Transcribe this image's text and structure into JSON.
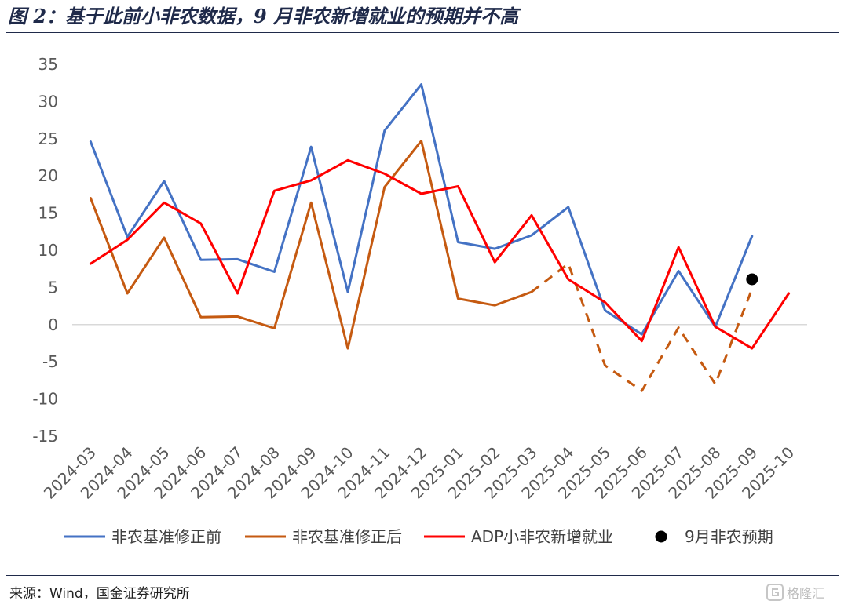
{
  "figure": {
    "title": "图 2：基于此前小非农数据，9 月非农新增就业的预期并不高",
    "source": "来源：Wind，国金证券研究所",
    "watermark": "格隆汇"
  },
  "colors": {
    "blue": "#4472C4",
    "orange": "#C55A11",
    "red": "#FF0000",
    "black": "#000000"
  },
  "chart_data": {
    "type": "line",
    "categories": [
      "2024-03",
      "2024-04",
      "2024-05",
      "2024-06",
      "2024-07",
      "2024-08",
      "2024-09",
      "2024-10",
      "2024-11",
      "2024-12",
      "2025-01",
      "2025-02",
      "2025-03",
      "2025-04",
      "2025-05",
      "2025-06",
      "2025-07",
      "2025-08",
      "2025-09",
      "2025-10"
    ],
    "ylim": [
      -15,
      35
    ],
    "yticks": [
      35,
      30,
      25,
      20,
      15,
      10,
      5,
      0,
      -5,
      -10,
      -15
    ],
    "grid": false,
    "legend_position": "bottom",
    "series": [
      {
        "name": "非农基准修正前",
        "color": "#4472C4",
        "style": "solid",
        "values": [
          24.6,
          11.8,
          19.3,
          8.7,
          8.8,
          7.1,
          23.9,
          4.4,
          26.1,
          32.3,
          11.1,
          10.2,
          12.0,
          15.8,
          1.9,
          -1.3,
          7.2,
          -0.3,
          11.9,
          null
        ]
      },
      {
        "name": "非农基准修正后",
        "color": "#C55A11",
        "style": "solid",
        "values": [
          17.0,
          4.2,
          11.7,
          1.0,
          1.1,
          -0.5,
          16.4,
          -3.2,
          18.5,
          24.7,
          3.5,
          2.6,
          4.4,
          null,
          null,
          null,
          null,
          null,
          null,
          null
        ]
      },
      {
        "name": "",
        "color": "#C55A11",
        "style": "dashed",
        "values": [
          null,
          null,
          null,
          null,
          null,
          null,
          null,
          null,
          null,
          null,
          null,
          null,
          4.4,
          8.2,
          -5.5,
          -8.9,
          -0.4,
          -8.0,
          4.8,
          null
        ]
      },
      {
        "name": "ADP小非农新增就业",
        "color": "#FF0000",
        "style": "solid",
        "values": [
          8.2,
          11.4,
          16.4,
          13.6,
          4.2,
          18.0,
          19.4,
          22.1,
          20.3,
          17.6,
          18.6,
          8.4,
          14.7,
          6.1,
          3.0,
          -2.2,
          10.4,
          -0.3,
          -3.2,
          4.2
        ]
      },
      {
        "name": "9月非农预期",
        "color": "#000000",
        "style": "marker",
        "values": [
          null,
          null,
          null,
          null,
          null,
          null,
          null,
          null,
          null,
          null,
          null,
          null,
          null,
          null,
          null,
          null,
          null,
          null,
          6.1,
          null
        ]
      }
    ]
  }
}
